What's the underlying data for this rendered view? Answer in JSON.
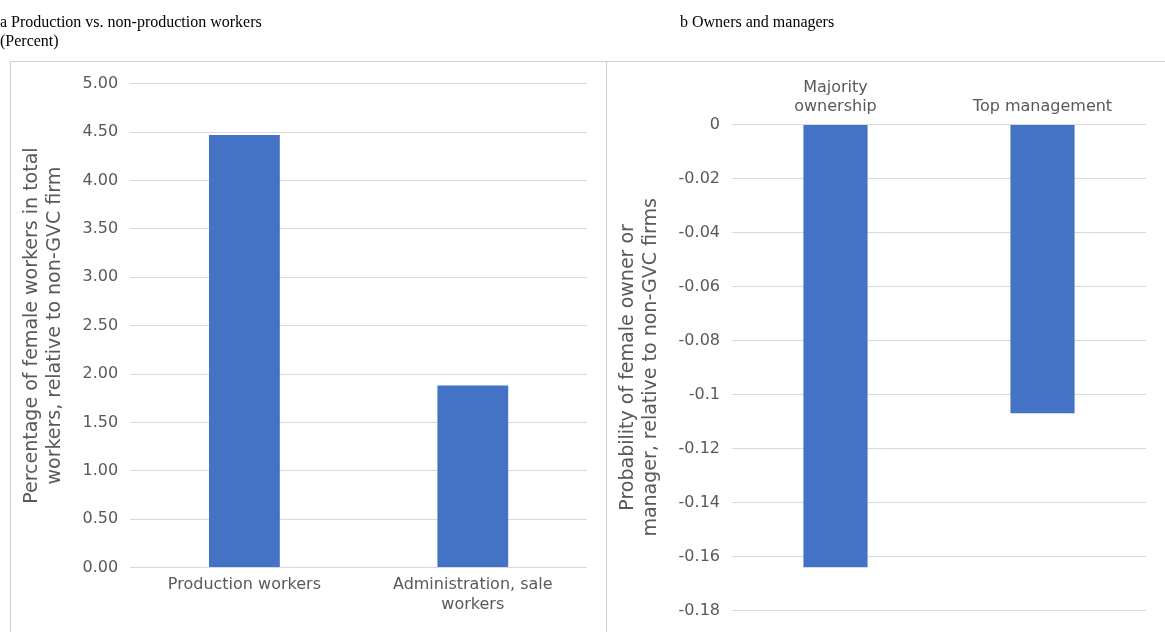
{
  "chart_data": [
    {
      "type": "bar",
      "title": "a Production vs. non-production workers",
      "subtitle": "(Percent)",
      "ylabel": "Percentage of female workers in total workers, relative to non-GVC firm",
      "categories": [
        "Production workers",
        "Administration, sale workers"
      ],
      "values": [
        4.47,
        1.88
      ],
      "color": "#4472c4",
      "ylim": [
        0,
        5
      ],
      "yticks": [
        {
          "value": 0,
          "label": "0.00"
        },
        {
          "value": 0.5,
          "label": "0.50"
        },
        {
          "value": 1,
          "label": "1.00"
        },
        {
          "value": 1.5,
          "label": "1.50"
        },
        {
          "value": 2,
          "label": "2.00"
        },
        {
          "value": 2.5,
          "label": "2.50"
        },
        {
          "value": 3,
          "label": "3.00"
        },
        {
          "value": 3.5,
          "label": "3.50"
        },
        {
          "value": 4,
          "label": "4.00"
        },
        {
          "value": 4.5,
          "label": "4.50"
        },
        {
          "value": 5,
          "label": "5.00"
        }
      ],
      "grid": "y",
      "legend": false
    },
    {
      "type": "bar",
      "title": "b Owners and managers",
      "ylabel": "Probability of female owner or manager, relative to non-GVC firms",
      "categories": [
        "Majority ownership",
        "Top management"
      ],
      "values": [
        -0.164,
        -0.107
      ],
      "color": "#4472c4",
      "ylim": [
        -0.18,
        0
      ],
      "yticks": [
        -0.18,
        -0.16,
        -0.14,
        -0.12,
        -0.1,
        -0.08,
        -0.06,
        -0.04,
        -0.02,
        0
      ],
      "grid": "y",
      "legend": false
    }
  ]
}
